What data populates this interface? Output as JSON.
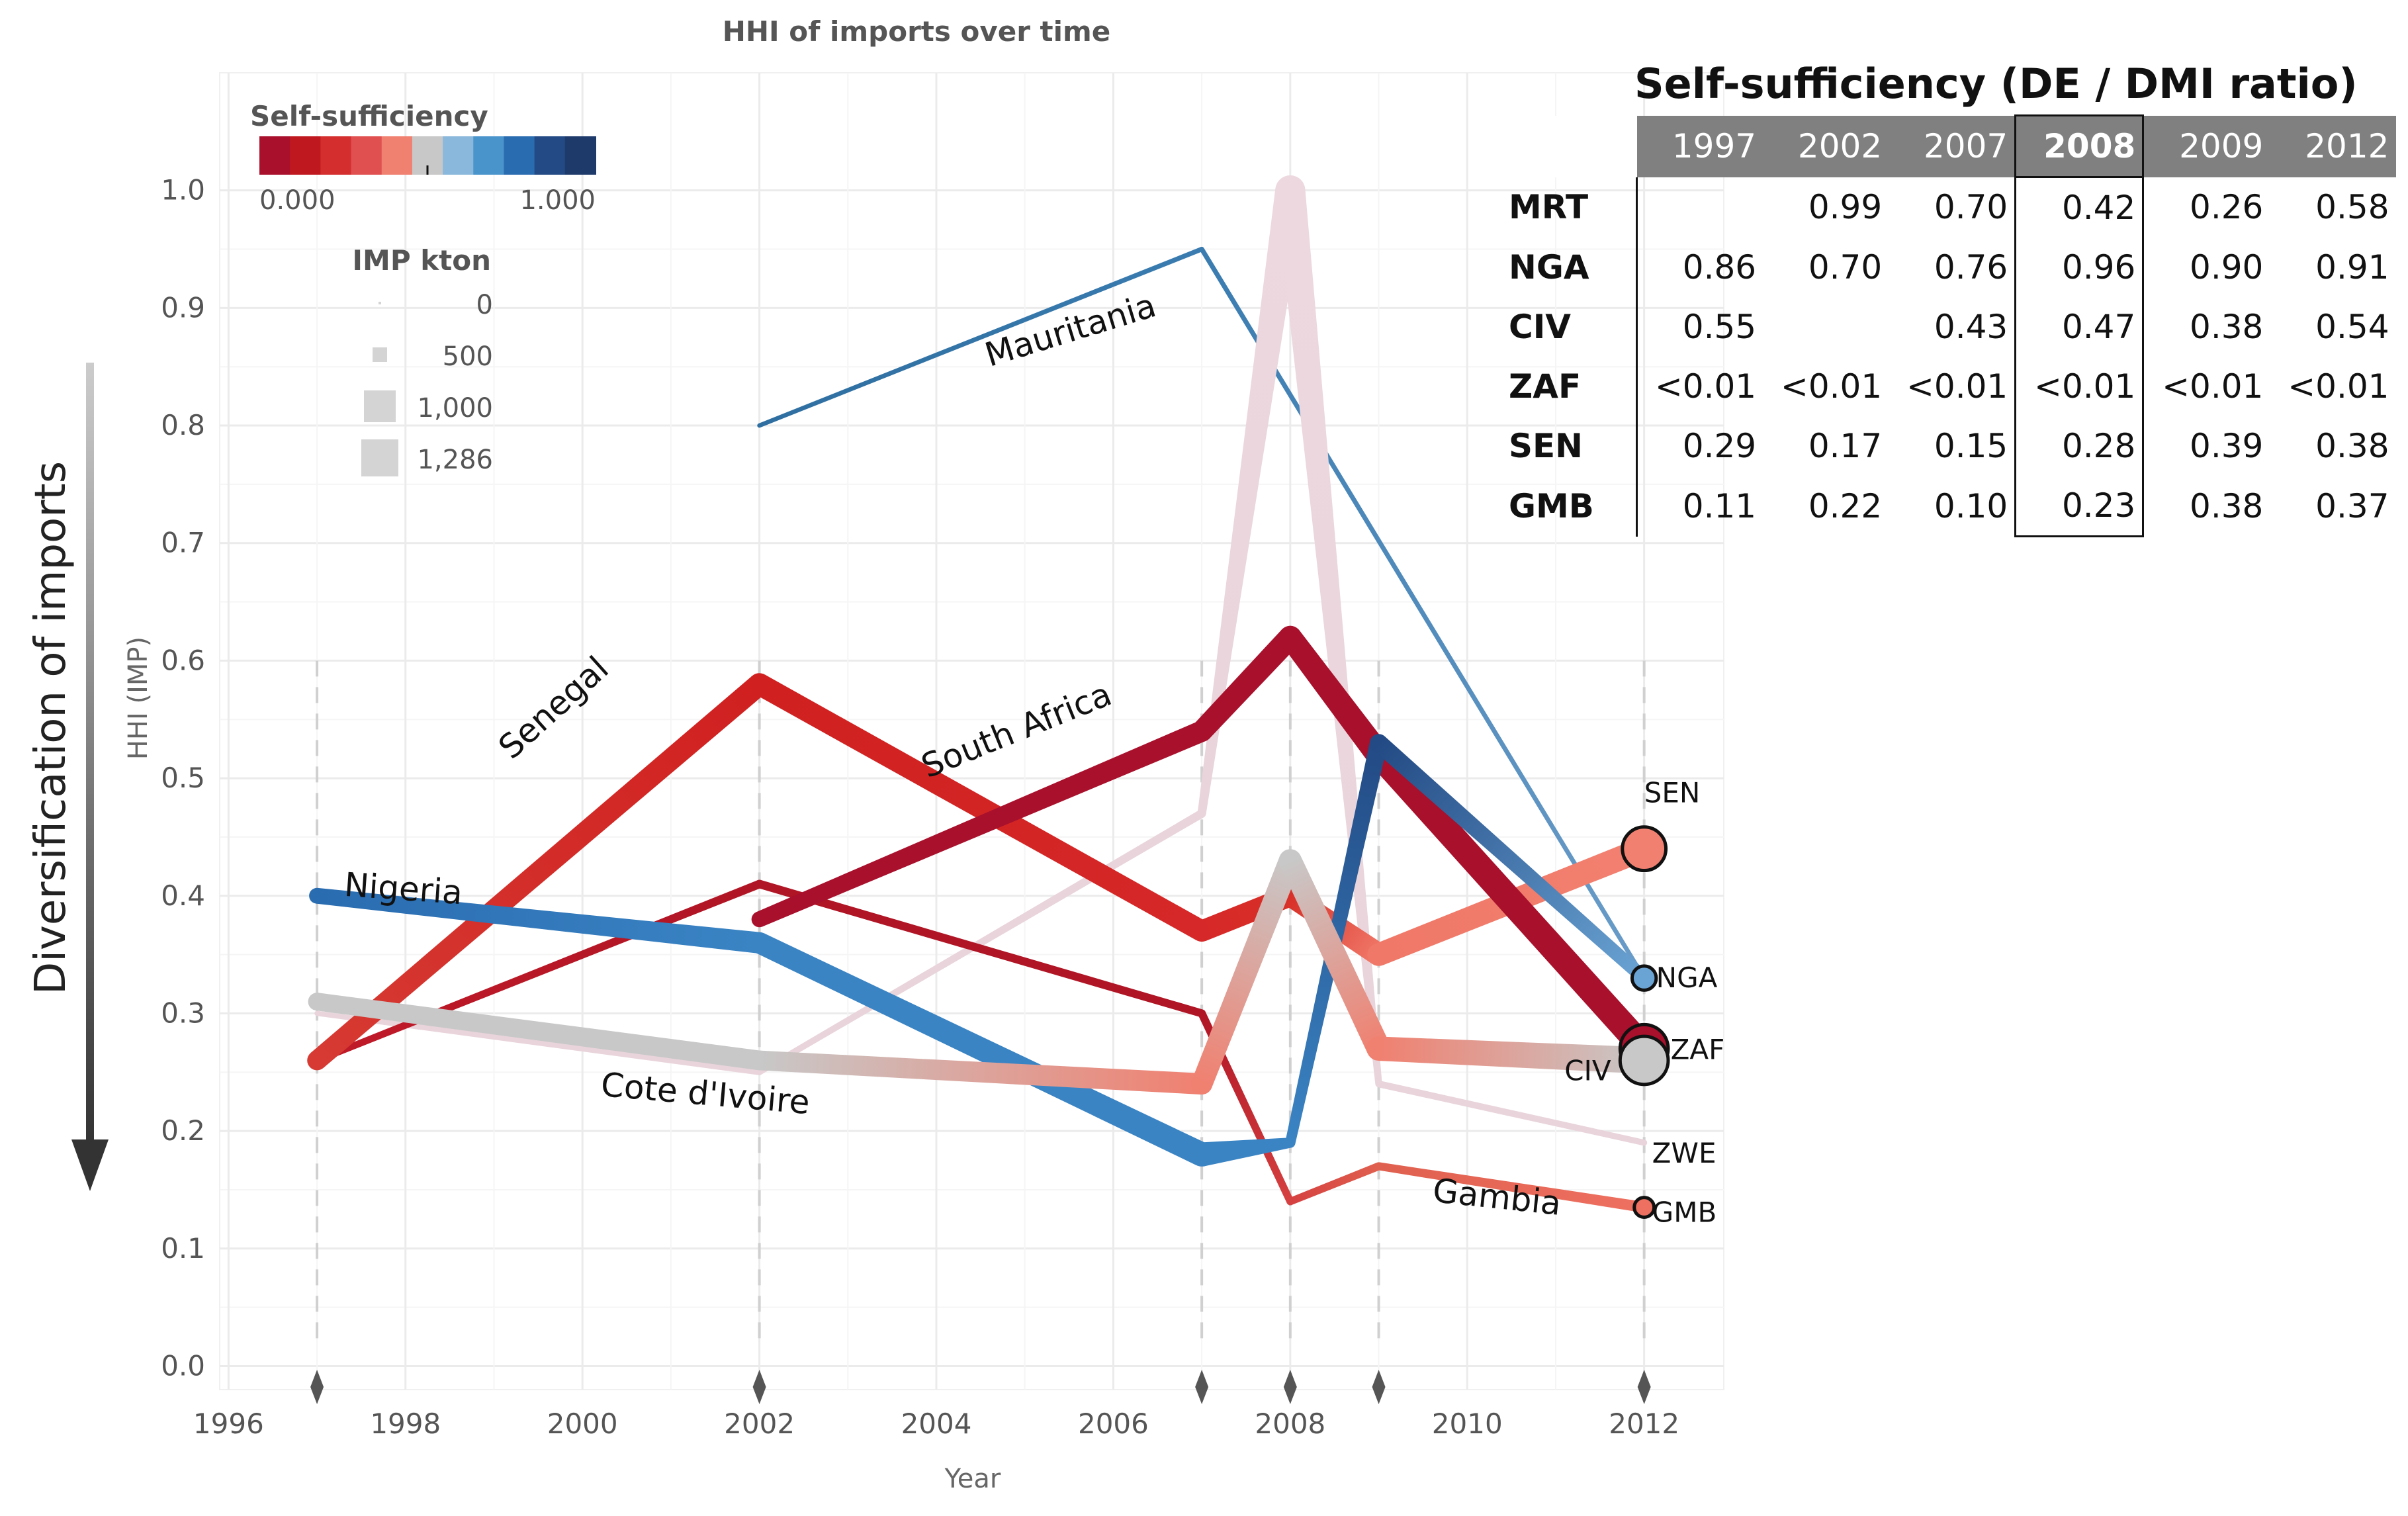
{
  "chart_data": [
    {
      "type": "line",
      "title": "HHI of imports over time",
      "xlabel": "Year",
      "ylabel": "HHI (IMP)",
      "side_label": "Diversification of imports",
      "xlim": [
        1995.9,
        2012.9
      ],
      "ylim": [
        -0.02,
        1.1
      ],
      "x_ticks": [
        1996,
        1998,
        2000,
        2002,
        2004,
        2006,
        2008,
        2010,
        2012
      ],
      "y_ticks": [
        0.0,
        0.1,
        0.2,
        0.3,
        0.4,
        0.5,
        0.6,
        0.7,
        0.8,
        0.9,
        1.0
      ],
      "observation_years": [
        1997,
        2002,
        2007,
        2008,
        2009,
        2012
      ],
      "legend": {
        "color_title": "Self-sufficiency",
        "color_min_label": "0.000",
        "color_max_label": "1.000",
        "color_palette": [
          "#a8102c",
          "#c0181f",
          "#d42e2e",
          "#e05050",
          "#f08070",
          "#c8c8c8",
          "#8ab8dc",
          "#4a94cc",
          "#2a6cb0",
          "#234a84",
          "#1e3a6a"
        ],
        "size_title": "IMP kton",
        "size_levels": [
          "0",
          "500",
          "1,000",
          "1,286"
        ]
      },
      "series": [
        {
          "name": "Mauritania",
          "end_label": "",
          "x": [
            2002,
            2007,
            2012
          ],
          "y": [
            0.8,
            0.95,
            0.33
          ],
          "colors": [
            "#2e6ea0",
            "#3a7cb0",
            "#6a9cc8"
          ],
          "kton": [
            5,
            8,
            6
          ]
        },
        {
          "name": "Zimbabwe",
          "end_label": "ZWE",
          "x": [
            1997,
            2002,
            2007,
            2008,
            2009,
            2012
          ],
          "y": [
            0.3,
            0.25,
            0.47,
            1.0,
            0.24,
            0.19
          ],
          "colors": [
            "#e8d4da",
            "#e8d4da",
            "#e8d4da",
            "#ecd8de",
            "#e8d4da",
            "#e8d4da"
          ],
          "kton": [
            10,
            20,
            60,
            1286,
            30,
            20
          ]
        },
        {
          "name": "Gambia",
          "end_label": "GMB",
          "x": [
            1997,
            2002,
            2007,
            2008,
            2009,
            2012
          ],
          "y": [
            0.26,
            0.41,
            0.3,
            0.14,
            0.17,
            0.135
          ],
          "colors": [
            "#c01a28",
            "#b01525",
            "#b01525",
            "#d54040",
            "#e0604f",
            "#ee7060"
          ],
          "kton": [
            30,
            60,
            50,
            40,
            50,
            120
          ]
        },
        {
          "name": "Senegal",
          "end_label": "SEN",
          "x": [
            1997,
            2002,
            2007,
            2008,
            2009,
            2012
          ],
          "y": [
            0.26,
            0.58,
            0.37,
            0.4,
            0.35,
            0.44
          ],
          "colors": [
            "#d63a32",
            "#d02020",
            "#d62828",
            "#d83028",
            "#f07868",
            "#f28070"
          ],
          "kton": [
            500,
            650,
            600,
            600,
            700,
            800
          ]
        },
        {
          "name": "South Africa",
          "end_label": "ZAF",
          "x": [
            2002,
            2007,
            2008,
            2009,
            2012
          ],
          "y": [
            0.38,
            0.54,
            0.62,
            0.52,
            0.27
          ],
          "colors": [
            "#a8102c",
            "#a8102c",
            "#a8102c",
            "#a8102c",
            "#a8102c"
          ],
          "kton": [
            300,
            600,
            700,
            900,
            1000
          ]
        },
        {
          "name": "Nigeria",
          "end_label": "NGA",
          "x": [
            1997,
            2002,
            2007,
            2008,
            2009,
            2012
          ],
          "y": [
            0.4,
            0.36,
            0.18,
            0.19,
            0.53,
            0.33
          ],
          "colors": [
            "#2a6cb0",
            "#3a84c4",
            "#3a84c4",
            "#3a84c4",
            "#234a84",
            "#6aa4d4"
          ],
          "kton": [
            300,
            600,
            800,
            100,
            400,
            200
          ]
        },
        {
          "name": "Cote d'Ivoire",
          "end_label": "CIV",
          "x": [
            1997,
            2002,
            2007,
            2008,
            2009,
            2012
          ],
          "y": [
            0.31,
            0.26,
            0.24,
            0.43,
            0.27,
            0.26
          ],
          "colors": [
            "#c8c8c8",
            "#c8c8c8",
            "#f08070",
            "#c8c8c8",
            "#f08070",
            "#c8c8c8"
          ],
          "kton": [
            400,
            500,
            600,
            700,
            800,
            1000
          ]
        }
      ]
    },
    {
      "type": "table",
      "title": "Self-sufficiency  (DE / DMI ratio)",
      "highlight_column": "2008",
      "columns": [
        "1997",
        "2002",
        "2007",
        "2008",
        "2009",
        "2012"
      ],
      "rows": [
        {
          "label": "MRT",
          "values": [
            "",
            "0.99",
            "0.70",
            "0.42",
            "0.26",
            "0.58"
          ]
        },
        {
          "label": "NGA",
          "values": [
            "0.86",
            "0.70",
            "0.76",
            "0.96",
            "0.90",
            "0.91"
          ]
        },
        {
          "label": "CIV",
          "values": [
            "0.55",
            "",
            "0.43",
            "0.47",
            "0.38",
            "0.54"
          ]
        },
        {
          "label": "ZAF",
          "values": [
            "<0.01",
            "<0.01",
            "<0.01",
            "<0.01",
            "<0.01",
            "<0.01"
          ]
        },
        {
          "label": "SEN",
          "values": [
            "0.29",
            "0.17",
            "0.15",
            "0.28",
            "0.39",
            "0.38"
          ]
        },
        {
          "label": "GMB",
          "values": [
            "0.11",
            "0.22",
            "0.10",
            "0.23",
            "0.38",
            "0.37"
          ]
        }
      ]
    }
  ]
}
